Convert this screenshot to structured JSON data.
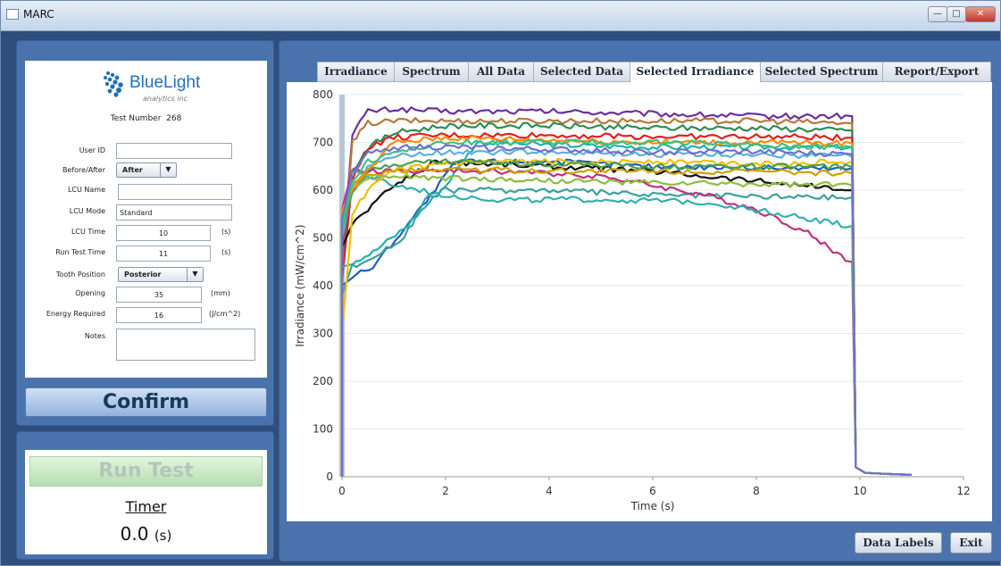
{
  "window": {
    "title": "MARC",
    "min_icon": "minimize-icon",
    "max_icon": "maximize-icon",
    "close_icon": "close-icon"
  },
  "form": {
    "logo_text": "BlueLight",
    "logo_sub": "analytics inc",
    "test_number_label": "Test Number",
    "test_number": "268",
    "fields": {
      "user_id": {
        "label": "User ID",
        "value": ""
      },
      "before_after": {
        "label": "Before/After",
        "value": "After"
      },
      "lcu_name": {
        "label": "LCU Name",
        "value": ""
      },
      "lcu_mode": {
        "label": "LCU Mode",
        "value": "Standard"
      },
      "lcu_time": {
        "label": "LCU Time",
        "value": "10",
        "unit": "(s)"
      },
      "run_test_time": {
        "label": "Run Test Time",
        "value": "11",
        "unit": "(s)"
      },
      "tooth_position": {
        "label": "Tooth Position",
        "value": "Posterior"
      },
      "opening": {
        "label": "Opening",
        "value": "35",
        "unit": "(mm)"
      },
      "energy_required": {
        "label": "Energy Required",
        "value": "16",
        "unit": "(J/cm^2)"
      },
      "notes": {
        "label": "Notes",
        "value": ""
      }
    },
    "confirm_label": "Confirm"
  },
  "run": {
    "run_label": "Run Test",
    "timer_label": "Timer",
    "timer_value": "0.0",
    "timer_unit": "(s)"
  },
  "tabs": [
    {
      "label": "Irradiance"
    },
    {
      "label": "Spectrum"
    },
    {
      "label": "All Data"
    },
    {
      "label": "Selected Data"
    },
    {
      "label": "Selected Irradiance",
      "active": true
    },
    {
      "label": "Selected Spectrum"
    },
    {
      "label": "Report/Export"
    }
  ],
  "buttons": {
    "data_labels": "Data Labels",
    "exit": "Exit"
  },
  "chart_data": {
    "type": "line",
    "title": "",
    "xlabel": "Time (s)",
    "ylabel": "Irradiance (mW/cm^2)",
    "xlim": [
      0,
      12
    ],
    "ylim": [
      0,
      800
    ],
    "xticks": [
      0,
      2,
      4,
      6,
      8,
      10,
      12
    ],
    "yticks": [
      0,
      100,
      200,
      300,
      400,
      500,
      600,
      700,
      800
    ],
    "grid": true,
    "legend": "none",
    "series": [
      {
        "color": "#6b2fa0",
        "start": 450,
        "x": [
          0.2,
          0.5,
          1,
          2,
          4,
          6,
          8,
          9.8
        ],
        "y": [
          720,
          765,
          770,
          765,
          765,
          760,
          755,
          755
        ]
      },
      {
        "color": "#b9773a",
        "start": 420,
        "x": [
          0.2,
          0.5,
          1,
          2,
          4,
          6,
          8,
          9.8
        ],
        "y": [
          700,
          740,
          745,
          745,
          745,
          745,
          745,
          740
        ]
      },
      {
        "color": "#2e8b57",
        "start": 430,
        "x": [
          0.2,
          0.5,
          1,
          2,
          4,
          6,
          8,
          9.8
        ],
        "y": [
          640,
          690,
          720,
          735,
          735,
          730,
          730,
          725
        ]
      },
      {
        "color": "#e02020",
        "start": 410,
        "x": [
          0.2,
          0.5,
          1,
          2,
          4,
          6,
          8,
          9.8
        ],
        "y": [
          620,
          690,
          710,
          715,
          715,
          712,
          712,
          710
        ]
      },
      {
        "color": "#111111",
        "start": 480,
        "x": [
          0.2,
          0.5,
          1,
          1.8,
          4,
          6,
          8,
          9.8
        ],
        "y": [
          530,
          560,
          610,
          660,
          650,
          640,
          620,
          600
        ]
      },
      {
        "color": "#1f5fbf",
        "start": 400,
        "x": [
          0.2,
          0.6,
          1.2,
          1.8,
          2.2,
          4,
          6,
          9.8
        ],
        "y": [
          420,
          440,
          520,
          600,
          660,
          660,
          650,
          645
        ]
      },
      {
        "color": "#20b2aa",
        "start": 440,
        "x": [
          0.2,
          0.6,
          1.2,
          2,
          2.6,
          4,
          6,
          9.8
        ],
        "y": [
          450,
          470,
          520,
          610,
          700,
          695,
          690,
          690
        ]
      },
      {
        "color": "#3ca0a0",
        "start": 380,
        "x": [
          0.2,
          0.6,
          1.2,
          1.6,
          2,
          4,
          6,
          9.8
        ],
        "y": [
          440,
          460,
          500,
          580,
          600,
          600,
          590,
          585
        ]
      },
      {
        "color": "#c0307f",
        "start": 560,
        "x": [
          0.2,
          1,
          3,
          5,
          6,
          7,
          8,
          9,
          9.8
        ],
        "y": [
          640,
          640,
          640,
          630,
          610,
          590,
          560,
          510,
          450
        ]
      },
      {
        "color": "#30b0b0",
        "start": 500,
        "x": [
          0.2,
          1,
          2,
          3,
          5,
          7,
          8.5,
          9.8
        ],
        "y": [
          640,
          610,
          590,
          580,
          580,
          575,
          550,
          525
        ]
      },
      {
        "color": "#f0c000",
        "start": 300,
        "x": [
          0.2,
          0.5,
          1,
          2,
          4,
          6,
          8,
          9.8
        ],
        "y": [
          550,
          600,
          640,
          655,
          660,
          660,
          655,
          660
        ]
      },
      {
        "color": "#5ab0e0",
        "start": 500,
        "x": [
          0.2,
          0.5,
          1,
          2,
          4,
          6,
          8,
          9.8
        ],
        "y": [
          610,
          650,
          670,
          680,
          680,
          675,
          675,
          670
        ]
      },
      {
        "color": "#4aa04a",
        "start": 520,
        "x": [
          0.2,
          0.5,
          1,
          2,
          4,
          6,
          8,
          9.8
        ],
        "y": [
          600,
          640,
          655,
          660,
          655,
          650,
          650,
          648
        ]
      },
      {
        "color": "#d0a000",
        "start": 550,
        "x": [
          0.2,
          0.5,
          1,
          2,
          4,
          6,
          8,
          9.8
        ],
        "y": [
          610,
          630,
          640,
          645,
          640,
          640,
          638,
          635
        ]
      },
      {
        "color": "#8fbc3f",
        "start": 540,
        "x": [
          0.2,
          0.5,
          1,
          2,
          4,
          6,
          8,
          9.8
        ],
        "y": [
          600,
          620,
          630,
          625,
          620,
          615,
          612,
          610
        ]
      },
      {
        "color": "#ff8c00",
        "start": 560,
        "x": [
          0.2,
          0.5,
          1,
          2,
          4,
          6,
          8,
          9.8
        ],
        "y": [
          600,
          640,
          700,
          710,
          705,
          700,
          700,
          698
        ]
      },
      {
        "color": "#40c080",
        "start": 520,
        "x": [
          0.2,
          0.5,
          1,
          2,
          4,
          6,
          8,
          9.8
        ],
        "y": [
          620,
          660,
          680,
          700,
          700,
          700,
          695,
          690
        ]
      },
      {
        "color": "#7070d0",
        "start": 540,
        "x": [
          0.2,
          0.5,
          1,
          2,
          4,
          6,
          8,
          9.8
        ],
        "y": [
          640,
          675,
          690,
          690,
          685,
          680,
          680,
          675
        ]
      }
    ]
  }
}
